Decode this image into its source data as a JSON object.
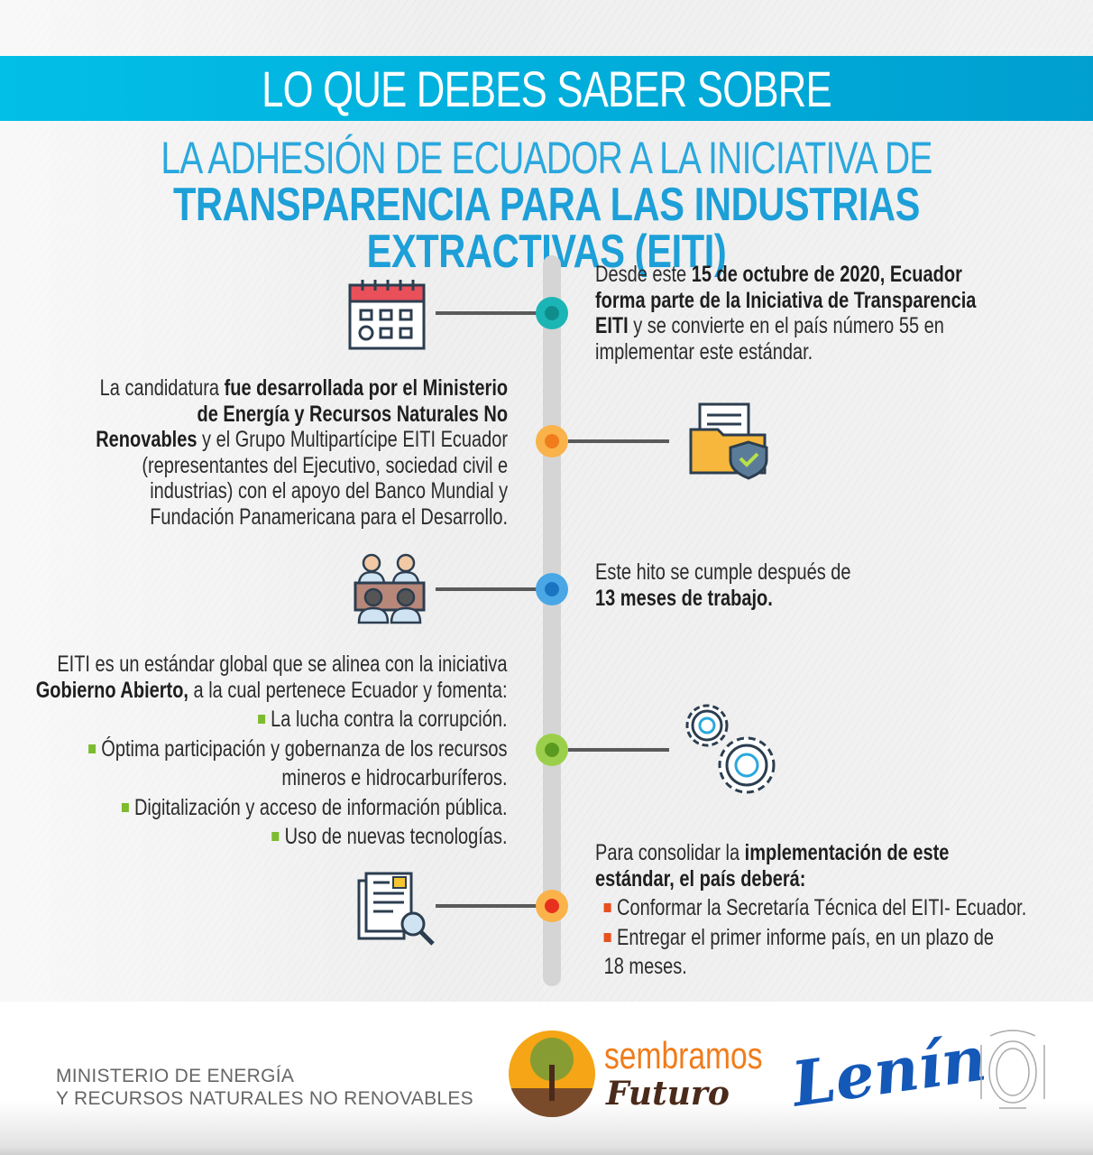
{
  "header": {
    "title": "LO QUE DEBES SABER SOBRE",
    "subtitle_line1": "LA ADHESIÓN DE ECUADOR A LA INICIATIVA DE",
    "subtitle_line2": "TRANSPARENCIA PARA LAS INDUSTRIAS EXTRACTIVAS (EITI)"
  },
  "colors": {
    "band": "#00b3e0",
    "title_blue": "#1d9fd8",
    "dot_teal": "#1bb5b5",
    "dot_orange": "#f7a032",
    "dot_blue": "#2b8fd6",
    "dot_green": "#7dbb2f",
    "dot_red": "#e8451e"
  },
  "timeline": [
    {
      "icon": "calendar-icon",
      "lines": [
        [
          {
            "t": "Desde este "
          },
          {
            "t": "15 de octubre de 2020, Ecuador",
            "b": true
          }
        ],
        [
          {
            "t": "forma parte de la Iniciativa de Transparencia",
            "b": true
          }
        ],
        [
          {
            "t": "EITI",
            "b": true
          },
          {
            "t": " y se convierte en el país número 55 en"
          }
        ],
        [
          {
            "t": "implementar este estándar."
          }
        ]
      ]
    },
    {
      "icon": "secure-folder-icon",
      "lines": [
        [
          {
            "t": "La candidatura "
          },
          {
            "t": "fue desarrollada por el Ministerio",
            "b": true
          }
        ],
        [
          {
            "t": "de Energía y Recursos Naturales No",
            "b": true
          }
        ],
        [
          {
            "t": "Renovables",
            "b": true
          },
          {
            "t": " y el Grupo Multipartícipe EITI Ecuador"
          }
        ],
        [
          {
            "t": "(representantes del Ejecutivo, sociedad civil e"
          }
        ],
        [
          {
            "t": "industrias) con el apoyo del Banco Mundial y"
          }
        ],
        [
          {
            "t": "Fundación Panamericana para el Desarrollo."
          }
        ]
      ]
    },
    {
      "icon": "meeting-people-icon",
      "lines": [
        [
          {
            "t": "Este hito se cumple después de"
          }
        ],
        [
          {
            "t": "13 meses de trabajo.",
            "b": true
          }
        ]
      ]
    },
    {
      "icon": "gears-icon",
      "lines": [
        [
          {
            "t": "EITI es un estándar global que se alinea con la iniciativa"
          }
        ],
        [
          {
            "t": "Gobierno Abierto,",
            "b": true
          },
          {
            "t": " a la cual pertenece Ecuador y fomenta:"
          }
        ],
        [
          {
            "t": "La lucha contra la corrupción.",
            "bullet": true
          }
        ],
        [
          {
            "t": "Óptima participación y gobernanza de los recursos",
            "bullet": true
          }
        ],
        [
          {
            "t": "mineros e hidrocarburíferos."
          }
        ],
        [
          {
            "t": "Digitalización y acceso de información pública.",
            "bullet": true
          }
        ],
        [
          {
            "t": "Uso de nuevas tecnologías.",
            "bullet": true
          }
        ]
      ]
    },
    {
      "icon": "document-search-icon",
      "lines": [
        [
          {
            "t": "Para consolidar la "
          },
          {
            "t": "implementación de este",
            "b": true
          }
        ],
        [
          {
            "t": "estándar, el país deberá:",
            "b": true
          }
        ],
        [
          {
            "t": "Conformar la Secretaría Técnica del EITI- Ecuador.",
            "bullet": true
          }
        ],
        [
          {
            "t": "Entregar el primer informe país, en un plazo de",
            "bullet": true
          }
        ],
        [
          {
            "t": "   18 meses."
          }
        ]
      ]
    }
  ],
  "footer": {
    "ministry_line1": "MINISTERIO DE ENERGÍA",
    "ministry_line2": "Y RECURSOS NATURALES NO RENOVABLES",
    "logo1_word1": "sembramos",
    "logo1_word2": "Futuro",
    "logo2": "Lenín"
  }
}
